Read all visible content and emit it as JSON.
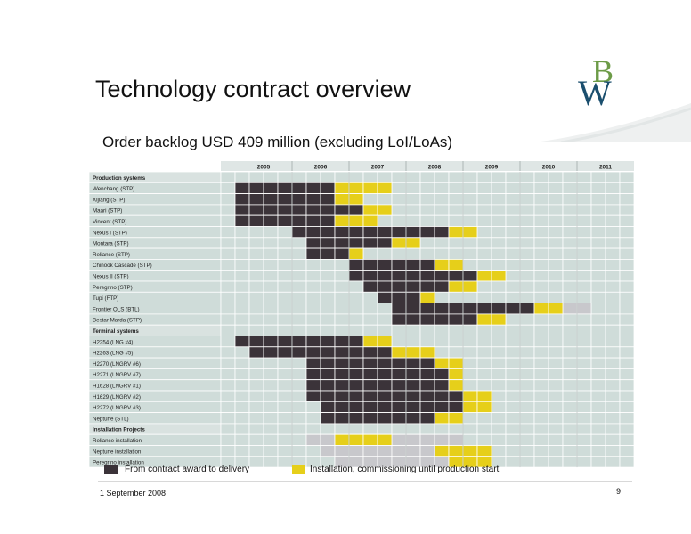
{
  "title": "Technology contract overview",
  "subtitle": "Order backlog USD 409 million (excluding LoI/LoAs)",
  "logo": {
    "icon": "bw-offshore-logo",
    "letters": "BW"
  },
  "colors": {
    "delivery": "#3b3339",
    "installation": "#e6cf1a",
    "grid_bg": "#cfdcd9",
    "grid_line": "#ffffff",
    "section_bg": "#d9e2e0",
    "gray": "#c8c8cc",
    "logo_blue": "#1b4f6e",
    "logo_green": "#6c9b47"
  },
  "chart_data": {
    "type": "table",
    "years": [
      "2005",
      "2006",
      "2007",
      "2008",
      "2009",
      "2010",
      "2011"
    ],
    "periods_per_year": 4,
    "rows": [
      {
        "label": "Production systems",
        "section": true
      },
      {
        "label": "Wenchang (STP)",
        "dark": [
          [
            0,
            7
          ]
        ],
        "yellow": [
          [
            7,
            11
          ]
        ]
      },
      {
        "label": "Xijiang (STP)",
        "dark": [
          [
            0,
            7
          ]
        ],
        "yellow": [
          [
            7,
            9
          ]
        ]
      },
      {
        "label": "Maari (STP)",
        "dark": [
          [
            0,
            9
          ]
        ],
        "yellow": [
          [
            9,
            11
          ]
        ]
      },
      {
        "label": "Vincent (STP)",
        "dark": [
          [
            0,
            7
          ]
        ],
        "yellow": [
          [
            7,
            10
          ]
        ]
      },
      {
        "label": "Nexus I (STP)",
        "dark": [
          [
            4,
            15
          ]
        ],
        "yellow": [
          [
            15,
            17
          ]
        ]
      },
      {
        "label": "Montara (STP)",
        "dark": [
          [
            5,
            11
          ]
        ],
        "yellow": [
          [
            11,
            13
          ]
        ]
      },
      {
        "label": "Reliance (STP)",
        "dark": [
          [
            5,
            8
          ]
        ],
        "yellow": [
          [
            8,
            9
          ]
        ]
      },
      {
        "label": "Chinook Cascade (STP)",
        "dark": [
          [
            8,
            14
          ]
        ],
        "yellow": [
          [
            14,
            16
          ]
        ]
      },
      {
        "label": "Nexus II (STP)",
        "dark": [
          [
            8,
            17
          ]
        ],
        "yellow": [
          [
            17,
            19
          ]
        ]
      },
      {
        "label": "Peregrino (STP)",
        "dark": [
          [
            9,
            15
          ]
        ],
        "yellow": [
          [
            15,
            17
          ]
        ]
      },
      {
        "label": "Tupi (FTP)",
        "dark": [
          [
            10,
            13
          ]
        ],
        "yellow": [
          [
            13,
            14
          ]
        ]
      },
      {
        "label": "Frontier OLS (BTL)",
        "dark": [
          [
            11,
            21
          ]
        ],
        "yellow": [
          [
            21,
            23
          ]
        ],
        "gray": [
          [
            23,
            25
          ]
        ]
      },
      {
        "label": "Bestar Marda (STP)",
        "dark": [
          [
            11,
            17
          ]
        ],
        "yellow": [
          [
            17,
            19
          ]
        ]
      },
      {
        "label": "Terminal systems",
        "section": true
      },
      {
        "label": "H2254 (LNG #4)",
        "dark": [
          [
            0,
            9
          ]
        ],
        "yellow": [
          [
            9,
            11
          ]
        ]
      },
      {
        "label": "H2263 (LNG #5)",
        "dark": [
          [
            1,
            11
          ]
        ],
        "yellow": [
          [
            11,
            14
          ]
        ]
      },
      {
        "label": "H2270 (LNGRV #6)",
        "dark": [
          [
            5,
            14
          ]
        ],
        "yellow": [
          [
            14,
            16
          ]
        ]
      },
      {
        "label": "H2271 (LNGRV #7)",
        "dark": [
          [
            5,
            15
          ]
        ],
        "yellow": [
          [
            15,
            16
          ]
        ]
      },
      {
        "label": "H1628 (LNGRV #1)",
        "dark": [
          [
            5,
            15
          ]
        ],
        "yellow": [
          [
            15,
            16
          ]
        ]
      },
      {
        "label": "H1629 (LNGRV #2)",
        "dark": [
          [
            5,
            16
          ]
        ],
        "yellow": [
          [
            16,
            18
          ]
        ]
      },
      {
        "label": "H2272 (LNGRV #3)",
        "dark": [
          [
            6,
            16
          ]
        ],
        "yellow": [
          [
            16,
            18
          ]
        ]
      },
      {
        "label": "Neptune (STL)",
        "dark": [
          [
            6,
            14
          ]
        ],
        "yellow": [
          [
            14,
            16
          ]
        ]
      },
      {
        "label": "Installation Projects",
        "section": true
      },
      {
        "label": "Reliance installation",
        "gray": [
          [
            5,
            16
          ]
        ],
        "yellow": [
          [
            7,
            11
          ]
        ]
      },
      {
        "label": "Neptune installation",
        "gray": [
          [
            6,
            18
          ]
        ],
        "yellow": [
          [
            14,
            18
          ]
        ]
      },
      {
        "label": "Peregrino installation",
        "gray": [
          [
            7,
            18
          ]
        ],
        "yellow": [
          [
            15,
            18
          ]
        ]
      }
    ]
  },
  "legend": {
    "delivery_label": "From contract award to delivery",
    "installation_label": "Installation, commissioning until production start"
  },
  "footer": {
    "date": "1 September 2008",
    "page": "9"
  }
}
